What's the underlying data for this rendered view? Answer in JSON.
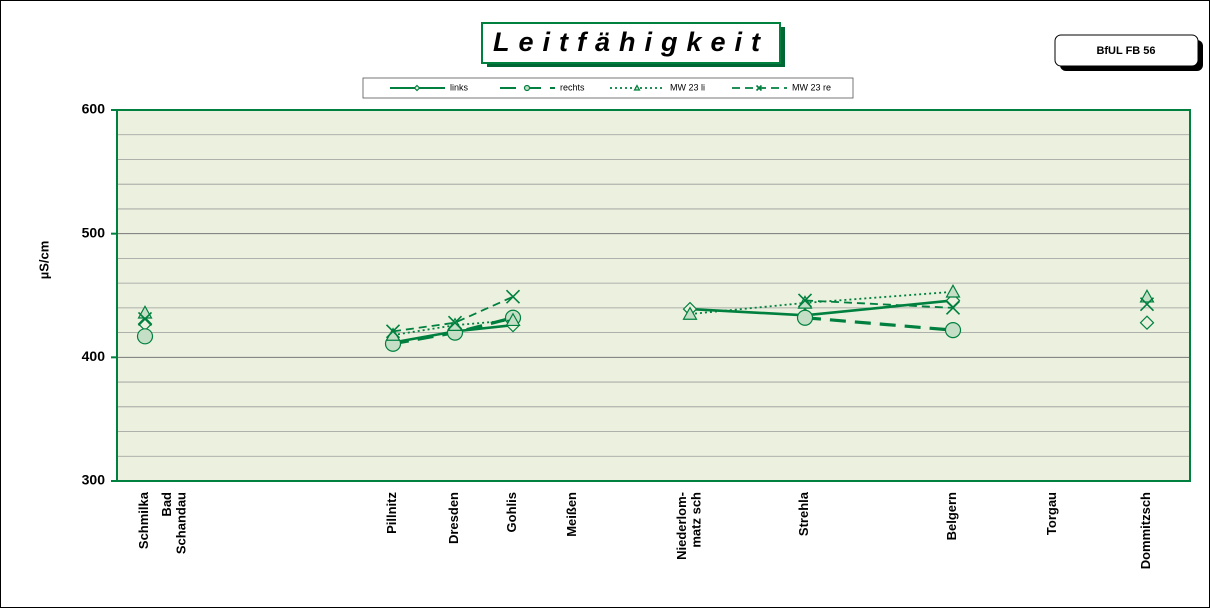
{
  "chart_data": {
    "type": "line",
    "title": "Leitfähigkeit",
    "badge": "BfUL FB 56",
    "y_label": "µS/cm",
    "categories": [
      "Schmilka",
      "Bad\nSchandau",
      "Pillnitz",
      "Dresden",
      "Gohlis",
      "Meißen",
      "Niederlom-\nmatz sch",
      "Strehla",
      "Belgern",
      "Torgau",
      "Dommitzsch"
    ],
    "series": [
      {
        "name": "links",
        "color": "#00803f",
        "marker": "diamond",
        "dash": "solid",
        "values": [
          427,
          null,
          412,
          421,
          426,
          null,
          439,
          434,
          446,
          null,
          428
        ]
      },
      {
        "name": "rechts",
        "color": "#00803f",
        "marker": "circle",
        "dash": "long-dash",
        "values": [
          417,
          null,
          411,
          420,
          432,
          null,
          null,
          432,
          422,
          null,
          null
        ]
      },
      {
        "name": "MW 23 li",
        "color": "#00803f",
        "marker": "triangle",
        "dash": "dotted",
        "values": [
          436,
          null,
          418,
          426,
          430,
          null,
          435,
          444,
          453,
          null,
          449
        ]
      },
      {
        "name": "MW 23 re",
        "color": "#00803f",
        "marker": "x",
        "dash": "dashed",
        "values": [
          431,
          null,
          421,
          428,
          449,
          null,
          null,
          446,
          440,
          null,
          443
        ]
      }
    ],
    "ylim": [
      300,
      600
    ],
    "yticks": [
      300,
      400,
      500,
      600
    ],
    "yminorticks": [
      320,
      340,
      360,
      380,
      420,
      440,
      460,
      480,
      520,
      540,
      560,
      580
    ],
    "grid": true
  }
}
